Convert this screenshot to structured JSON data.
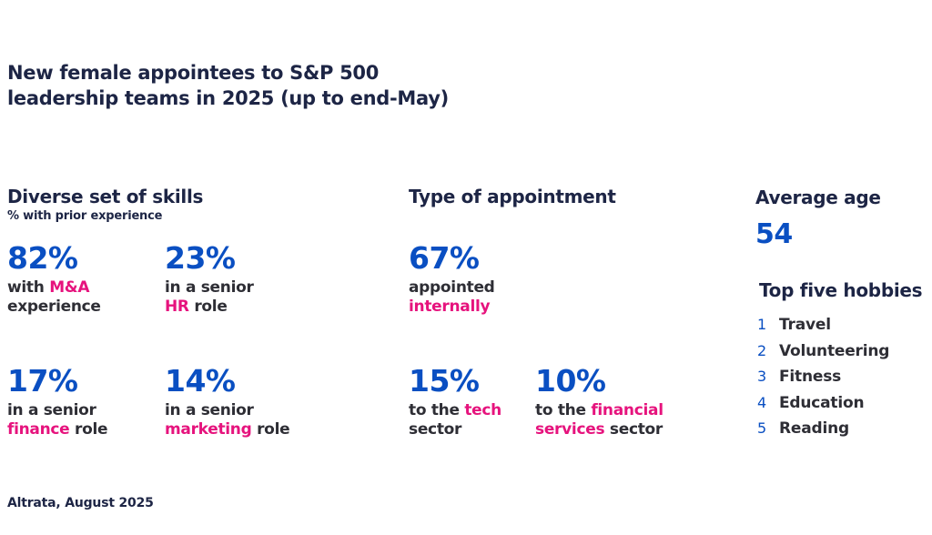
{
  "title": {
    "line1": "New female appointees to S&P 500",
    "line2": "leadership teams in 2025 (up to end-May)"
  },
  "skills": {
    "heading": "Diverse set of skills",
    "subheading": "% with prior experience",
    "stats": [
      {
        "value": "82%",
        "pre": "with ",
        "highlight": "M&A",
        "line2": "experience"
      },
      {
        "value": "23%",
        "line1": "in a senior",
        "highlight": "HR",
        "post": " role"
      },
      {
        "value": "17%",
        "line1": "in a senior",
        "highlight": "finance",
        "post": " role"
      },
      {
        "value": "14%",
        "line1": "in a senior",
        "highlight": "marketing",
        "post": " role"
      }
    ]
  },
  "appointment": {
    "heading": "Type of appointment",
    "stats": [
      {
        "value": "67%",
        "line1": "appointed",
        "highlight": "internally"
      },
      {
        "value": "15%",
        "pre": "to the ",
        "highlight": "tech",
        "line2": "sector"
      },
      {
        "value": "10%",
        "pre": "to the ",
        "highlight": "financial",
        "highlight2": "services",
        "post2": " sector"
      }
    ]
  },
  "age": {
    "heading": "Average age",
    "value": "54"
  },
  "hobbies": {
    "heading": "Top five hobbies",
    "items": [
      {
        "num": "1",
        "label": "Travel"
      },
      {
        "num": "2",
        "label": "Volunteering"
      },
      {
        "num": "3",
        "label": "Fitness"
      },
      {
        "num": "4",
        "label": "Education"
      },
      {
        "num": "5",
        "label": "Reading"
      }
    ]
  },
  "footer": "Altrata, August 2025",
  "colors": {
    "navy": "#1d2545",
    "blue": "#0a4fc2",
    "pink": "#e6137d",
    "text": "#2e2e35"
  }
}
